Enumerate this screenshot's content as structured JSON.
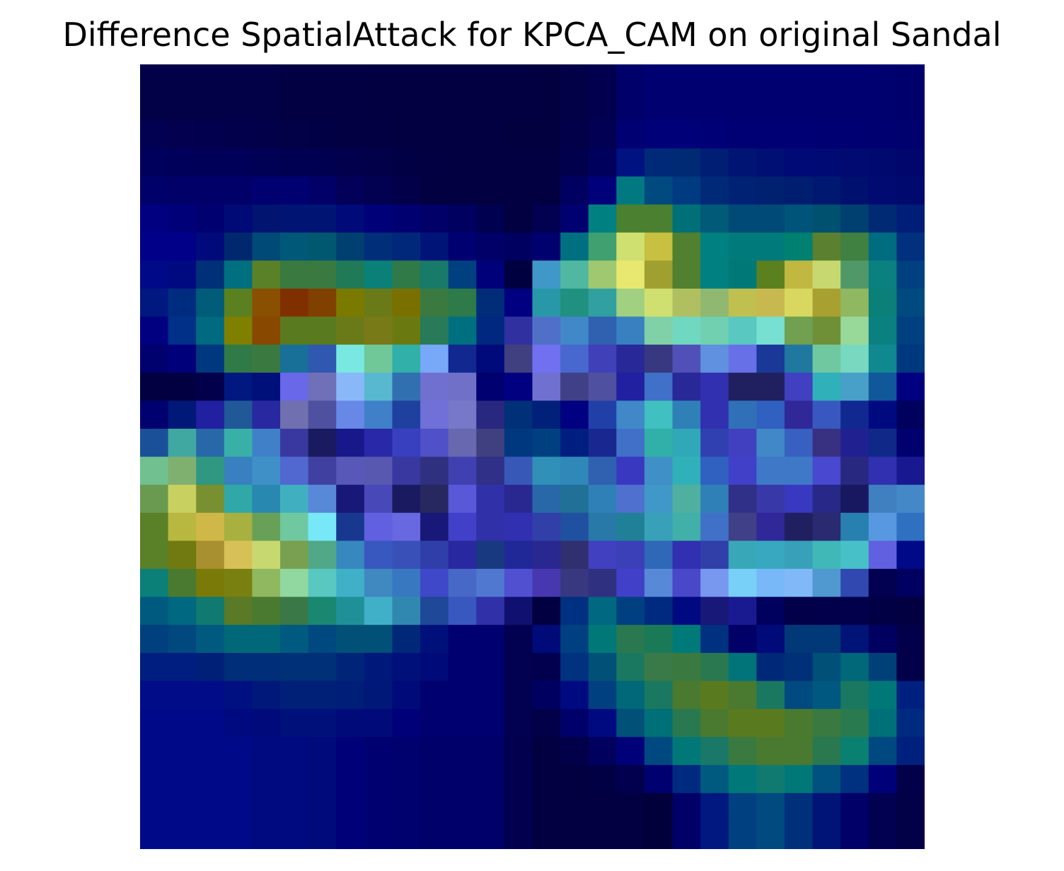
{
  "chart_data": {
    "type": "heatmap",
    "title": "Difference SpatialAttack for KPCA_CAM on original Sandal",
    "xlabel": "",
    "ylabel": "",
    "axes_visible": false,
    "colormap": "jet overlaid on dark-blue image",
    "rows": 28,
    "cols": 28,
    "cell_colors": [
      [
        "#020047",
        "#020047",
        "#020047",
        "#020047",
        "#020047",
        "#020043",
        "#020043",
        "#020043",
        "#020040",
        "#020040",
        "#020040",
        "#020040",
        "#020040",
        "#020040",
        "#02003f",
        "#020047",
        "#02004e",
        "#00006a",
        "#000070",
        "#000070",
        "#000070",
        "#000070",
        "#000070",
        "#000070",
        "#000070",
        "#000070",
        "#00006f",
        "#00006d"
      ],
      [
        "#020047",
        "#020047",
        "#020047",
        "#020047",
        "#020047",
        "#020043",
        "#020043",
        "#020043",
        "#020040",
        "#020040",
        "#020040",
        "#020040",
        "#020040",
        "#020040",
        "#02003f",
        "#020047",
        "#02004e",
        "#00006a",
        "#000070",
        "#000070",
        "#000070",
        "#000070",
        "#000070",
        "#000070",
        "#000070",
        "#000070",
        "#00006f",
        "#00006d"
      ],
      [
        "#020050",
        "#02004f",
        "#02004e",
        "#02004b",
        "#020049",
        "#020047",
        "#020045",
        "#020043",
        "#020042",
        "#020041",
        "#020040",
        "#020040",
        "#020040",
        "#02003f",
        "#02003f",
        "#020048",
        "#020052",
        "#000072",
        "#000078",
        "#000078",
        "#000076",
        "#000074",
        "#000074",
        "#000074",
        "#000072",
        "#000072",
        "#000070",
        "#00006e"
      ],
      [
        "#00005c",
        "#00005b",
        "#000059",
        "#000058",
        "#000055",
        "#000053",
        "#000050",
        "#02004c",
        "#020048",
        "#020045",
        "#020042",
        "#020040",
        "#020040",
        "#020040",
        "#020040",
        "#00004c",
        "#00005c",
        "#001280",
        "#002a78",
        "#002a74",
        "#001e74",
        "#001474",
        "#000f74",
        "#000a76",
        "#000a74",
        "#000a70",
        "#000a6e",
        "#00066c"
      ],
      [
        "#00006a",
        "#000068",
        "#000068",
        "#000068",
        "#000070",
        "#000070",
        "#000068",
        "#020058",
        "#020050",
        "#020048",
        "#020040",
        "#020040",
        "#020040",
        "#020040",
        "#020040",
        "#000060",
        "#00007a",
        "#007a80",
        "#004a80",
        "#003a80",
        "#002a78",
        "#002274",
        "#002070",
        "#001e70",
        "#001870",
        "#00106e",
        "#000a70",
        "#000a6e"
      ],
      [
        "#000080",
        "#000078",
        "#000070",
        "#000a76",
        "#001470",
        "#001474",
        "#001474",
        "#000a78",
        "#000078",
        "#000070",
        "#000068",
        "#000060",
        "#000050",
        "#020040",
        "#020050",
        "#000070",
        "#008080",
        "#4a8030",
        "#4a8030",
        "#007078",
        "#005a78",
        "#004a78",
        "#004a78",
        "#00547a",
        "#005070",
        "#004070",
        "#002a74",
        "#001e78"
      ],
      [
        "#000088",
        "#000088",
        "#000a7a",
        "#00286e",
        "#004a78",
        "#005878",
        "#005870",
        "#004070",
        "#002e78",
        "#00287a",
        "#001478",
        "#000070",
        "#000068",
        "#000060",
        "#00006e",
        "#007080",
        "#40a070",
        "#d0e070",
        "#c8c040",
        "#508030",
        "#008080",
        "#007a7a",
        "#007a7a",
        "#008070",
        "#5a8030",
        "#408040",
        "#006c80",
        "#00307e"
      ],
      [
        "#000a88",
        "#000a80",
        "#003078",
        "#007080",
        "#5a8028",
        "#3a7a40",
        "#3a7a40",
        "#207a58",
        "#0a8078",
        "#307a48",
        "#187a68",
        "#004080",
        "#00007a",
        "#000040",
        "#4098c8",
        "#50b8a0",
        "#a0c870",
        "#e8e870",
        "#a0a030",
        "#508030",
        "#008080",
        "#007878",
        "#5a8020",
        "#c0b840",
        "#c8d870",
        "#509868",
        "#0a8080",
        "#004080"
      ],
      [
        "#001880",
        "#002c80",
        "#005c78",
        "#5a8020",
        "#885000",
        "#803000",
        "#804000",
        "#7a7a00",
        "#6a7a18",
        "#7a7000",
        "#3a7a40",
        "#2e7a48",
        "#002c78",
        "#000080",
        "#2898a8",
        "#209080",
        "#30a0a0",
        "#a0d080",
        "#d0e070",
        "#b0c060",
        "#90b870",
        "#c0c050",
        "#c8b850",
        "#d8d860",
        "#a8a030",
        "#90b860",
        "#0a8078",
        "#004a80"
      ],
      [
        "#000080",
        "#003088",
        "#006a80",
        "#808000",
        "#884800",
        "#5a7a20",
        "#5a7a20",
        "#6a7a18",
        "#787a18",
        "#6a7a10",
        "#287a58",
        "#007080",
        "#002880",
        "#3030a0",
        "#5070c8",
        "#4088c8",
        "#3060b0",
        "#3880c0",
        "#80d0a8",
        "#70d8c0",
        "#70d0b0",
        "#58c8c0",
        "#78e0d0",
        "#70a050",
        "#709038",
        "#98d898",
        "#0a8080",
        "#004080"
      ],
      [
        "#00006e",
        "#00007a",
        "#003880",
        "#307a48",
        "#3a7a40",
        "#187098",
        "#3058b0",
        "#78e8e0",
        "#70c898",
        "#30b0a8",
        "#78a8f8",
        "#102890",
        "#000a7a",
        "#404080",
        "#7070f0",
        "#4868d0",
        "#4040b8",
        "#282898",
        "#383880",
        "#5050b8",
        "#6090e0",
        "#6870e8",
        "#1a3898",
        "#2078a0",
        "#70c8a0",
        "#78d8c0",
        "#108890",
        "#003880"
      ],
      [
        "#020040",
        "#020040",
        "#02004a",
        "#001880",
        "#00107a",
        "#6868e8",
        "#7070b8",
        "#88b8f8",
        "#58b8d0",
        "#3070b0",
        "#7070d0",
        "#7070c8",
        "#000070",
        "#000080",
        "#7070d0",
        "#404088",
        "#5050a0",
        "#2020a0",
        "#4070c8",
        "#282898",
        "#3030b0",
        "#202060",
        "#202060",
        "#4040c0",
        "#30b0b8",
        "#48a0c8",
        "#10589a",
        "#000080"
      ],
      [
        "#000070",
        "#001878",
        "#2020a0",
        "#205898",
        "#2828a0",
        "#7070b0",
        "#5050a0",
        "#6888e8",
        "#4080c8",
        "#2040a0",
        "#7070d8",
        "#7878c8",
        "#282880",
        "#003078",
        "#00207a",
        "#000080",
        "#2040a8",
        "#4088c8",
        "#40c0c0",
        "#3080b8",
        "#3030b0",
        "#3070b8",
        "#3060c0",
        "#302898",
        "#3858c0",
        "#102890",
        "#000a80",
        "#00005e"
      ],
      [
        "#1a5098",
        "#40a8a0",
        "#2868a8",
        "#38b0a8",
        "#4080c8",
        "#3838a0",
        "#1a1a60",
        "#18188a",
        "#2828a8",
        "#3840c0",
        "#5050c8",
        "#6868b0",
        "#404080",
        "#003880",
        "#004080",
        "#001e80",
        "#182890",
        "#4070c8",
        "#30b0a8",
        "#30a8b8",
        "#3040b0",
        "#4040c0",
        "#4088c8",
        "#3860c0",
        "#383080",
        "#202090",
        "#102888",
        "#00006e"
      ],
      [
        "#70c090",
        "#80b070",
        "#309880",
        "#3880c0",
        "#4090c8",
        "#5068d0",
        "#4040a0",
        "#5858b8",
        "#5858b0",
        "#3838a0",
        "#303080",
        "#4040b0",
        "#303088",
        "#3858b8",
        "#3090b8",
        "#3088b8",
        "#3060b0",
        "#3838c0",
        "#4090c8",
        "#30b0b8",
        "#3060c0",
        "#4040c8",
        "#4078c8",
        "#4078c8",
        "#4848d0",
        "#282880",
        "#3030b0",
        "#181890"
      ],
      [
        "#6a9a50",
        "#c8d060",
        "#789030",
        "#30a8a8",
        "#2888b0",
        "#40b0c0",
        "#5888d8",
        "#181878",
        "#4848b8",
        "#1a1a60",
        "#282860",
        "#5858d8",
        "#3030a8",
        "#282890",
        "#2868a8",
        "#207098",
        "#3080b8",
        "#5070d0",
        "#4098c8",
        "#50b0a0",
        "#3080b8",
        "#303088",
        "#3838a8",
        "#3838c0",
        "#282888",
        "#181860",
        "#4080c0",
        "#4488c8"
      ],
      [
        "#5a8028",
        "#b8b840",
        "#d0b848",
        "#a8b040",
        "#68a058",
        "#70c8a0",
        "#78e8f8",
        "#183890",
        "#6060e0",
        "#6868e0",
        "#181878",
        "#4040c8",
        "#3030a8",
        "#3030b0",
        "#3040a8",
        "#2050a0",
        "#2878a8",
        "#208098",
        "#38a0b8",
        "#40b0a8",
        "#4070c8",
        "#404088",
        "#302898",
        "#202060",
        "#2a2a70",
        "#2880b0",
        "#5898e0",
        "#3070c0"
      ],
      [
        "#5a8028",
        "#707a10",
        "#a89030",
        "#d8c058",
        "#c8d870",
        "#78a050",
        "#50a888",
        "#3888c0",
        "#3858c0",
        "#3850b8",
        "#303ea8",
        "#2828a0",
        "#183880",
        "#202898",
        "#282890",
        "#303070",
        "#4040c0",
        "#3c40b8",
        "#3068b8",
        "#3030b0",
        "#3040a8",
        "#38a8b8",
        "#38a8c0",
        "#38a0b8",
        "#40b8b8",
        "#48c0c8",
        "#6060e0",
        "#000a88"
      ],
      [
        "#0a8078",
        "#4a7a30",
        "#7a7a08",
        "#7a8010",
        "#90b860",
        "#90d8a0",
        "#58c8c0",
        "#40b0c8",
        "#4088c0",
        "#3878c0",
        "#3e48c8",
        "#4868c8",
        "#5078d0",
        "#5050d0",
        "#4838b0",
        "#383880",
        "#303080",
        "#4040c8",
        "#5888d8",
        "#4848c8",
        "#7898f0",
        "#78d0f8",
        "#78b8f8",
        "#80b8f8",
        "#5098d0",
        "#3048b0",
        "#020050",
        "#000060"
      ],
      [
        "#005a80",
        "#006880",
        "#107a70",
        "#5a7a28",
        "#4a7a30",
        "#3a7848",
        "#1a8870",
        "#209098",
        "#40b0c8",
        "#3088b0",
        "#204898",
        "#3858c0",
        "#3030a8",
        "#101070",
        "#020040",
        "#003080",
        "#006880",
        "#004080",
        "#002a80",
        "#000a80",
        "#181878",
        "#1a1a90",
        "#00005e",
        "#020048",
        "#02004a",
        "#02004a",
        "#020045",
        "#020040"
      ],
      [
        "#00407e",
        "#00487e",
        "#005a80",
        "#006878",
        "#006878",
        "#005a80",
        "#004880",
        "#005078",
        "#005078",
        "#002878",
        "#00107a",
        "#000070",
        "#000070",
        "#020050",
        "#000a78",
        "#004080",
        "#007878",
        "#2a7850",
        "#1a7a58",
        "#007a78",
        "#003080",
        "#000068",
        "#000a78",
        "#003878",
        "#003878",
        "#001478",
        "#000060",
        "#020048"
      ],
      [
        "#001e80",
        "#001e80",
        "#002078",
        "#002e78",
        "#002e78",
        "#003078",
        "#003078",
        "#002478",
        "#00187a",
        "#00107a",
        "#000a78",
        "#000070",
        "#000070",
        "#020050",
        "#02004e",
        "#003280",
        "#005078",
        "#1a7860",
        "#3a7a48",
        "#3a7a40",
        "#2a7850",
        "#007478",
        "#002878",
        "#003078",
        "#005078",
        "#006878",
        "#004078",
        "#020048"
      ],
      [
        "#000c88",
        "#000c88",
        "#000c88",
        "#001080",
        "#00187a",
        "#002078",
        "#002078",
        "#001e78",
        "#001878",
        "#000a78",
        "#000070",
        "#000070",
        "#000070",
        "#020050",
        "#000060",
        "#000a80",
        "#004080",
        "#006878",
        "#1a7860",
        "#4a7a30",
        "#5a7a20",
        "#4a7a30",
        "#1a7860",
        "#004a80",
        "#005880",
        "#1a7860",
        "#007878",
        "#002080"
      ],
      [
        "#000a88",
        "#000a88",
        "#000a88",
        "#000a80",
        "#000a7a",
        "#00107a",
        "#00107a",
        "#000a78",
        "#000a78",
        "#000078",
        "#000070",
        "#000070",
        "#000070",
        "#020050",
        "#020048",
        "#00006a",
        "#000a80",
        "#005078",
        "#007078",
        "#2a7850",
        "#4a7a30",
        "#5a7a20",
        "#5a7a20",
        "#4a7a30",
        "#3a7a40",
        "#2a7a50",
        "#007078",
        "#002a80"
      ],
      [
        "#000a88",
        "#000a88",
        "#000a88",
        "#000a88",
        "#000a80",
        "#000a80",
        "#000a7a",
        "#000078",
        "#000070",
        "#00006e",
        "#00006a",
        "#00006a",
        "#00006a",
        "#02004e",
        "#020040",
        "#020048",
        "#02005e",
        "#000078",
        "#004880",
        "#007878",
        "#1a7868",
        "#3a7a40",
        "#4a7a30",
        "#4a7a30",
        "#2a7850",
        "#0a8070",
        "#004880",
        "#00207e"
      ],
      [
        "#000a88",
        "#000a88",
        "#000a88",
        "#000a88",
        "#000a80",
        "#000a80",
        "#000a7a",
        "#000078",
        "#000070",
        "#00006e",
        "#00006a",
        "#00006a",
        "#00006a",
        "#02004e",
        "#020040",
        "#020040",
        "#020045",
        "#02004e",
        "#000070",
        "#002a80",
        "#005a80",
        "#00787a",
        "#107a70",
        "#007878",
        "#005080",
        "#003080",
        "#000078",
        "#020048"
      ],
      [
        "#000a88",
        "#000a88",
        "#000a88",
        "#000a88",
        "#000a80",
        "#000a80",
        "#000a7a",
        "#000078",
        "#000070",
        "#00006e",
        "#00006a",
        "#00006a",
        "#00006a",
        "#02004e",
        "#020040",
        "#020040",
        "#020040",
        "#020040",
        "#02003a",
        "#000068",
        "#001880",
        "#004080",
        "#004a80",
        "#00307a",
        "#001478",
        "#000068",
        "#020050",
        "#020047"
      ],
      [
        "#000a88",
        "#000a88",
        "#000a88",
        "#000a88",
        "#000a80",
        "#000a80",
        "#000a7a",
        "#000078",
        "#000070",
        "#00006e",
        "#00006a",
        "#00006a",
        "#00006a",
        "#02004e",
        "#020040",
        "#020040",
        "#020040",
        "#020040",
        "#02003a",
        "#000068",
        "#001880",
        "#004080",
        "#004a80",
        "#00307a",
        "#001478",
        "#000068",
        "#020050",
        "#020047"
      ]
    ]
  }
}
